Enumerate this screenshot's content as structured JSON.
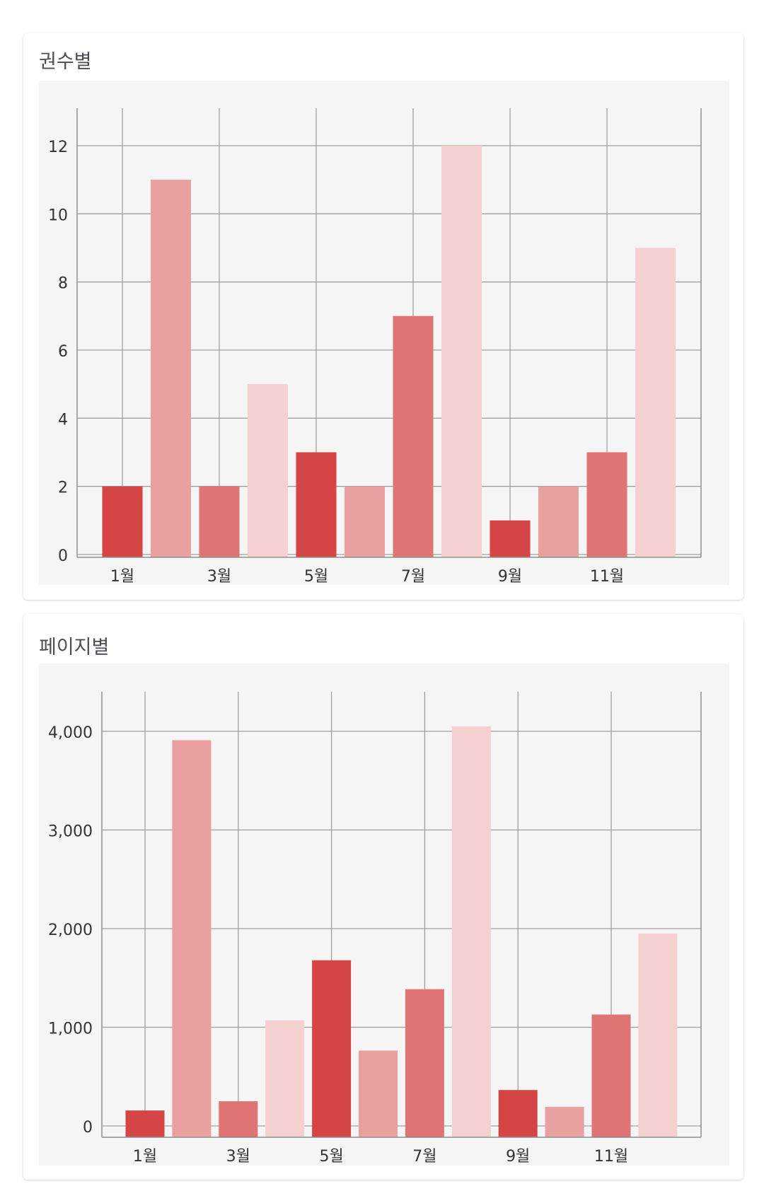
{
  "chart_data": [
    {
      "type": "bar",
      "title": "권수별",
      "categories": [
        "1월",
        "2월",
        "3월",
        "4월",
        "5월",
        "6월",
        "7월",
        "8월",
        "9월",
        "10월",
        "11월",
        "12월"
      ],
      "x_tick_labels": [
        "1월",
        "3월",
        "5월",
        "7월",
        "9월",
        "11월"
      ],
      "values": [
        2,
        11,
        2,
        5,
        3,
        2,
        7,
        12,
        1,
        2,
        3,
        9
      ],
      "y_ticks": [
        "0",
        "2",
        "4",
        "6",
        "8",
        "10",
        "12"
      ],
      "ylim": [
        0,
        12
      ],
      "xlabel": "",
      "ylabel": "",
      "grid": true,
      "colors": [
        "#d64545",
        "#e9a0a1",
        "#e07373",
        "#f4d0d1"
      ]
    },
    {
      "type": "bar",
      "title": "페이지별",
      "categories": [
        "1월",
        "2월",
        "3월",
        "4월",
        "5월",
        "6월",
        "7월",
        "8월",
        "9월",
        "10월",
        "11월",
        "12월"
      ],
      "x_tick_labels": [
        "1월",
        "3월",
        "5월",
        "7월",
        "9월",
        "11월"
      ],
      "values": [
        157,
        3910,
        250,
        1071,
        1679,
        764,
        1386,
        4050,
        364,
        193,
        1129,
        1950
      ],
      "y_ticks": [
        "0",
        "1,000",
        "2,000",
        "3,000",
        "4,000"
      ],
      "ylim": [
        0,
        4000
      ],
      "xlabel": "",
      "ylabel": "",
      "grid": true,
      "colors": [
        "#d64545",
        "#e9a0a1",
        "#e07373",
        "#f4d0d1"
      ]
    }
  ]
}
